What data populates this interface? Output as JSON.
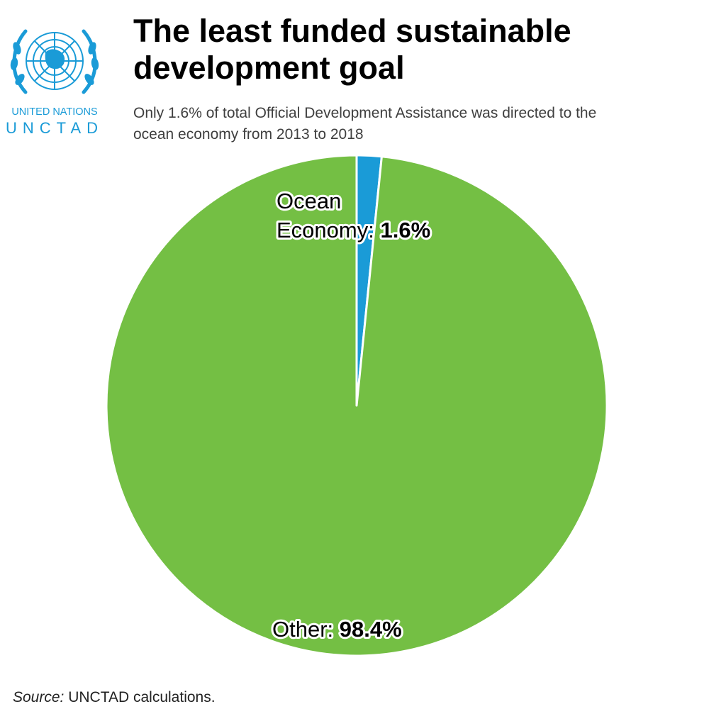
{
  "logo": {
    "line1": "UNITED NATIONS",
    "line2": "UNCTAD",
    "color": "#1a9bd7"
  },
  "title": "The least funded sustainable development goal",
  "subtitle": "Only 1.6% of total Official Development Assistance was directed to the ocean economy from 2013 to 2018",
  "source": {
    "label": "Source:",
    "text": "UNCTAD calculations."
  },
  "chart_data": {
    "type": "pie",
    "slices": [
      {
        "name": "Ocean Economy",
        "label_line1": "Ocean",
        "label_line2": "Economy:",
        "value": 1.6,
        "value_label": "1.6%",
        "color": "#1a9bd7"
      },
      {
        "name": "Other",
        "label_line1": "Other:",
        "value": 98.4,
        "value_label": "98.4%",
        "color": "#74bf44"
      }
    ],
    "start_angle": "12 o'clock",
    "direction": "clockwise"
  }
}
